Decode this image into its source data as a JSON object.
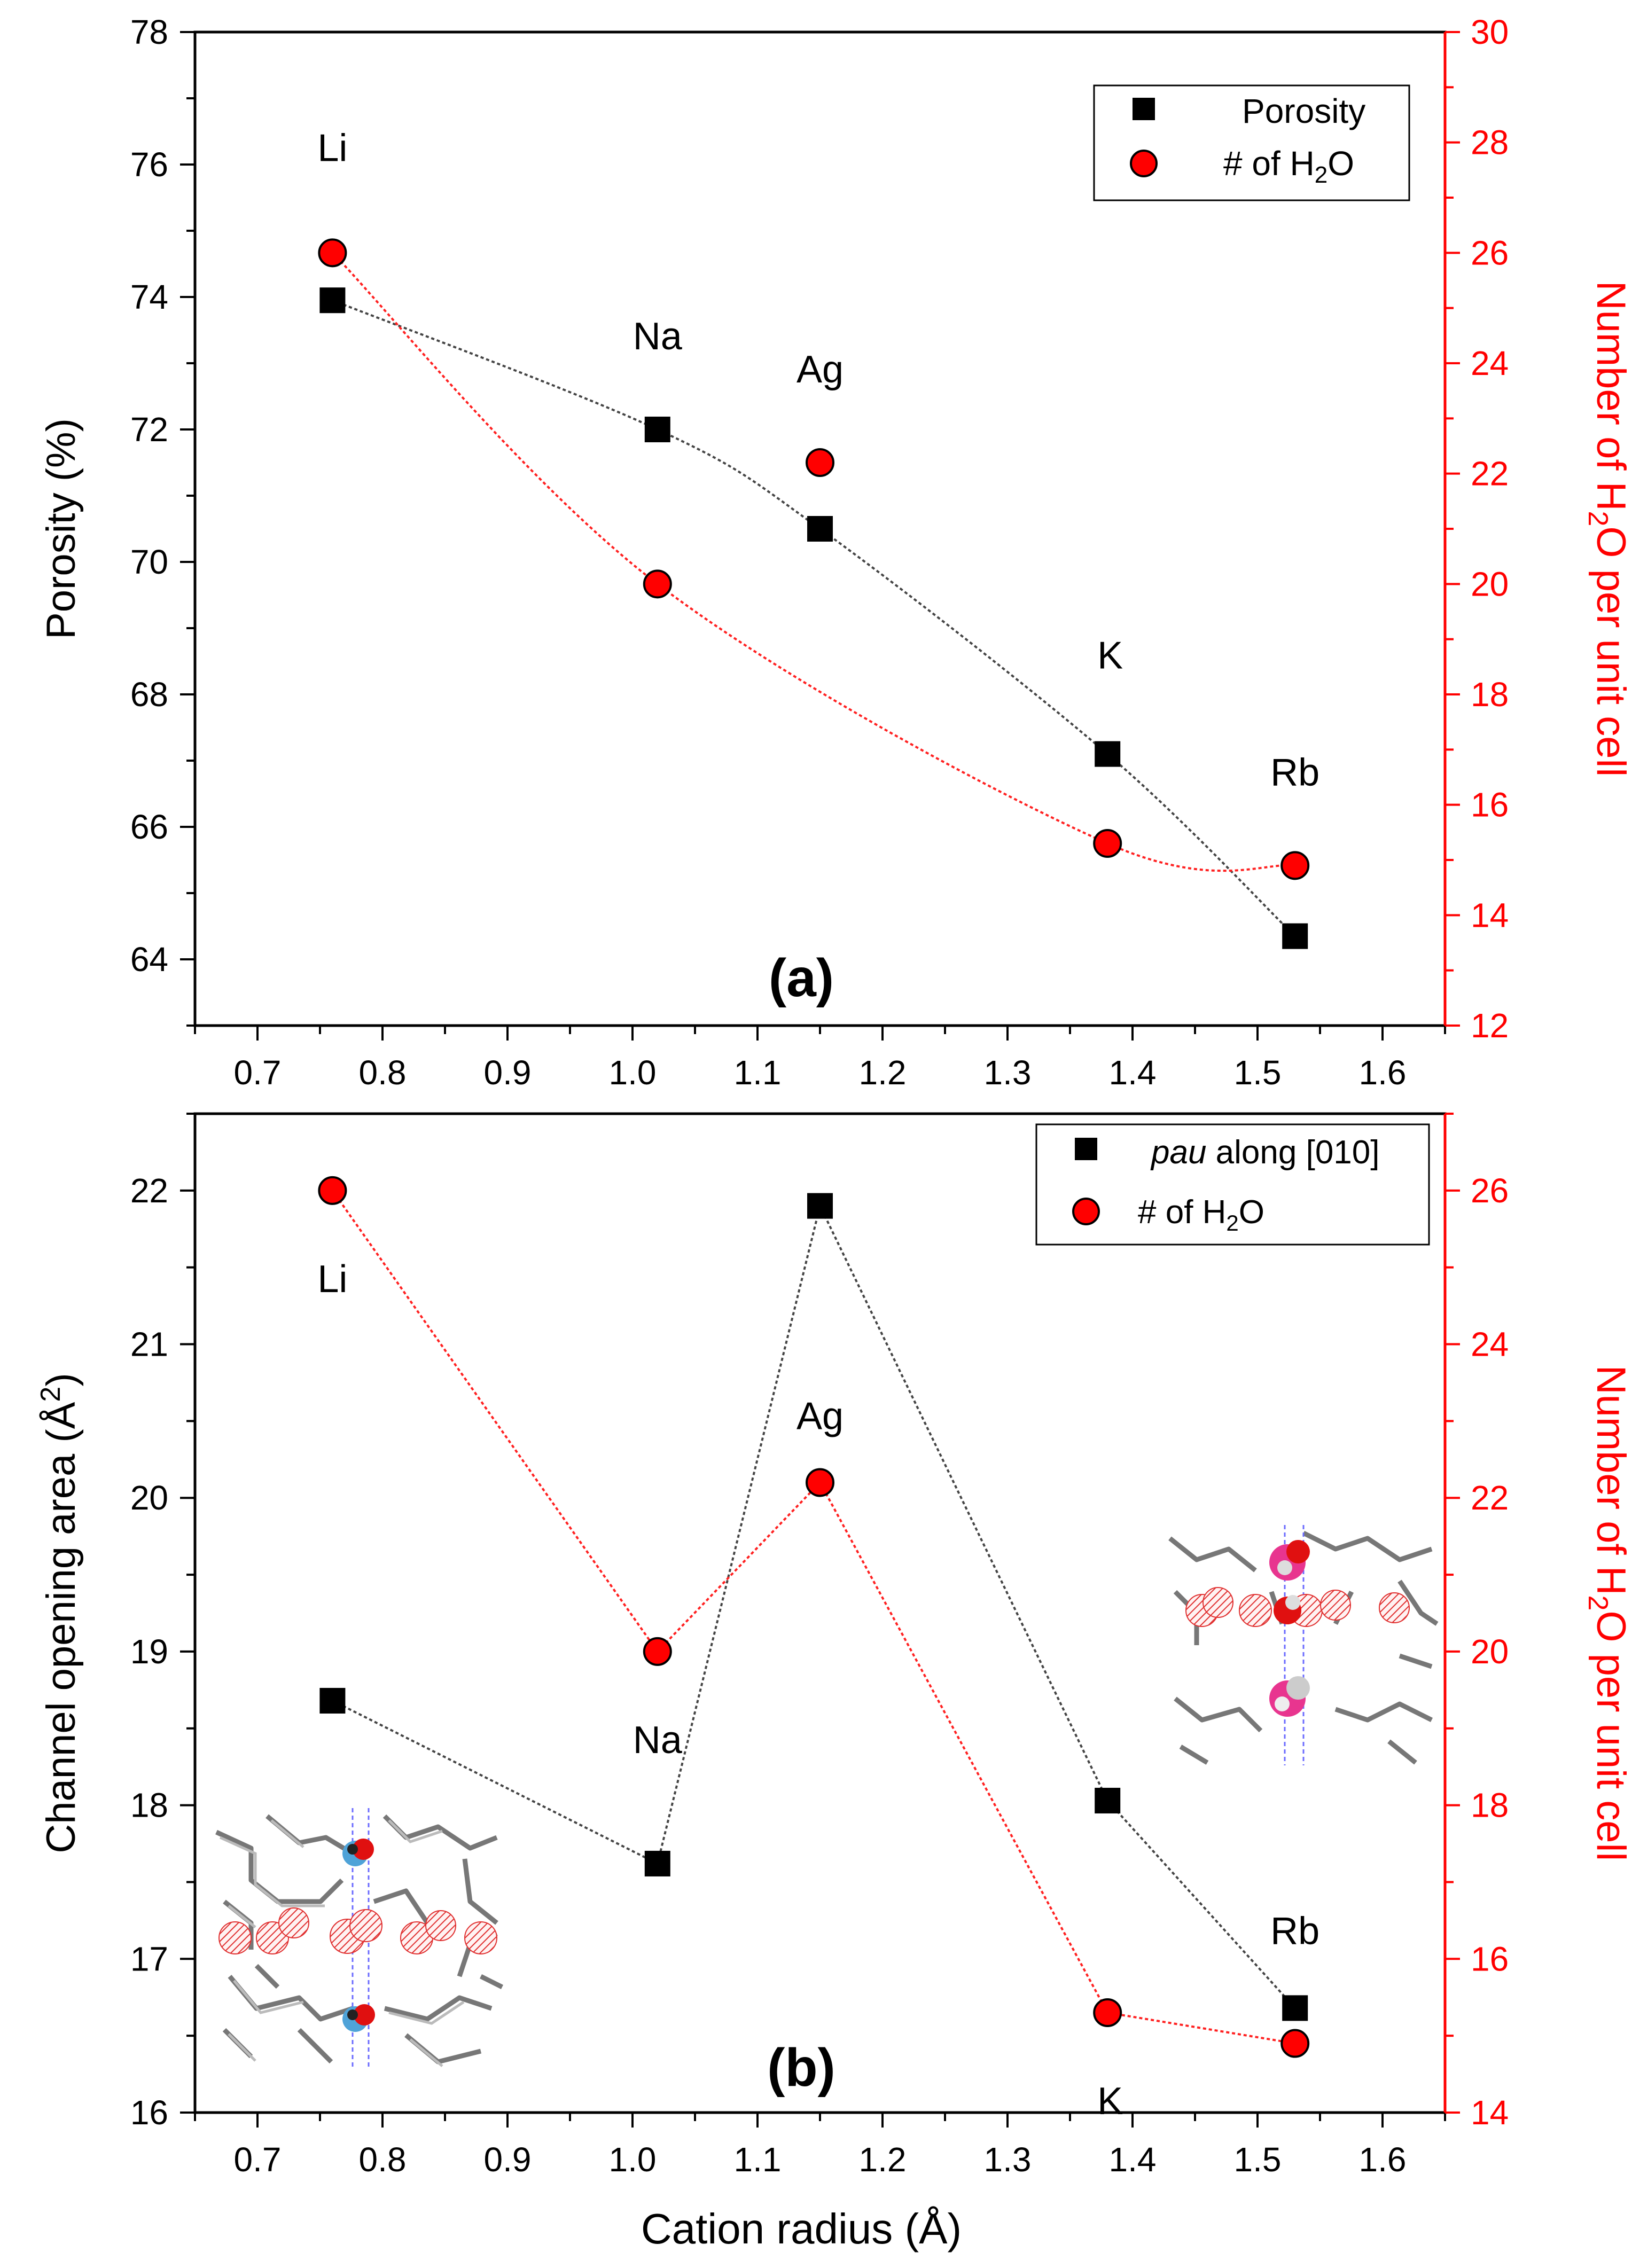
{
  "colors": {
    "black": "#000000",
    "red": "#ff0000",
    "fit_black": "#444444",
    "fit_red": "#ff2020"
  },
  "xaxis": {
    "label": "Cation radius (Å)",
    "range": [
      0.65,
      1.65
    ],
    "ticks": [
      0.7,
      0.8,
      0.9,
      1.0,
      1.1,
      1.2,
      1.3,
      1.4,
      1.5,
      1.6
    ],
    "tick_labels": [
      "0.7",
      "0.8",
      "0.9",
      "1.0",
      "1.1",
      "1.2",
      "1.3",
      "1.4",
      "1.5",
      "1.6"
    ]
  },
  "chart_data": [
    {
      "type": "scatter",
      "panel_label": "(a)",
      "x": [
        0.76,
        1.02,
        1.15,
        1.38,
        1.53
      ],
      "cation_labels": [
        "Li",
        "Na",
        "Ag",
        "K",
        "Rb"
      ],
      "left_axis": {
        "label": "Porosity (%)",
        "range": [
          63,
          78
        ],
        "ticks": [
          64,
          66,
          68,
          70,
          72,
          74,
          76,
          78
        ],
        "tick_labels": [
          "64",
          "66",
          "68",
          "70",
          "72",
          "74",
          "76",
          "78"
        ]
      },
      "right_axis": {
        "label_main": "Number of H",
        "label_sub": "2",
        "label_tail": "O per unit cell",
        "range": [
          12,
          30
        ],
        "ticks": [
          12,
          14,
          16,
          18,
          20,
          22,
          24,
          26,
          28,
          30
        ],
        "tick_labels": [
          "12",
          "14",
          "16",
          "18",
          "20",
          "22",
          "24",
          "26",
          "28",
          "30"
        ]
      },
      "series": [
        {
          "name": "Porosity",
          "axis": "left",
          "marker": "square",
          "values": [
            73.95,
            72.0,
            70.5,
            67.1,
            64.35
          ],
          "fit": "smooth",
          "fit_points": [
            0,
            1,
            2,
            3,
            4
          ]
        },
        {
          "name": "# of H2O",
          "legend_main": "# of H",
          "legend_sub": "2",
          "legend_tail": "O",
          "axis": "right",
          "marker": "circle",
          "values": [
            26.0,
            20.0,
            22.2,
            15.3,
            14.9
          ],
          "fit": "smooth",
          "fit_points": [
            0,
            1,
            3,
            4
          ]
        }
      ]
    },
    {
      "type": "line",
      "panel_label": "(b)",
      "x": [
        0.76,
        1.02,
        1.15,
        1.38,
        1.53
      ],
      "cation_labels": [
        "Li",
        "Na",
        "Ag",
        "K",
        "Rb"
      ],
      "left_axis": {
        "label_main": "Channel opening area (Å",
        "label_sup": "2",
        "label_tail": ")",
        "range": [
          16,
          22.5
        ],
        "ticks": [
          16,
          17,
          18,
          19,
          20,
          21,
          22
        ],
        "tick_labels": [
          "16",
          "17",
          "18",
          "19",
          "20",
          "21",
          "22"
        ]
      },
      "right_axis": {
        "label_main": "Number of H",
        "label_sub": "2",
        "label_tail": "O per unit cell",
        "range": [
          14,
          27
        ],
        "ticks": [
          14,
          16,
          18,
          20,
          22,
          24,
          26
        ],
        "tick_labels": [
          "14",
          "16",
          "18",
          "20",
          "22",
          "24",
          "26"
        ]
      },
      "series": [
        {
          "name": "pau along [010]",
          "legend_italic": "pau",
          "legend_rest": " along [010]",
          "axis": "left",
          "marker": "square",
          "values": [
            18.68,
            17.62,
            21.9,
            18.03,
            16.68
          ]
        },
        {
          "name": "# of H2O",
          "legend_main": "# of H",
          "legend_sub": "2",
          "legend_tail": "O",
          "axis": "right",
          "marker": "circle",
          "values": [
            26.0,
            20.0,
            22.2,
            15.3,
            14.9
          ]
        }
      ]
    }
  ]
}
